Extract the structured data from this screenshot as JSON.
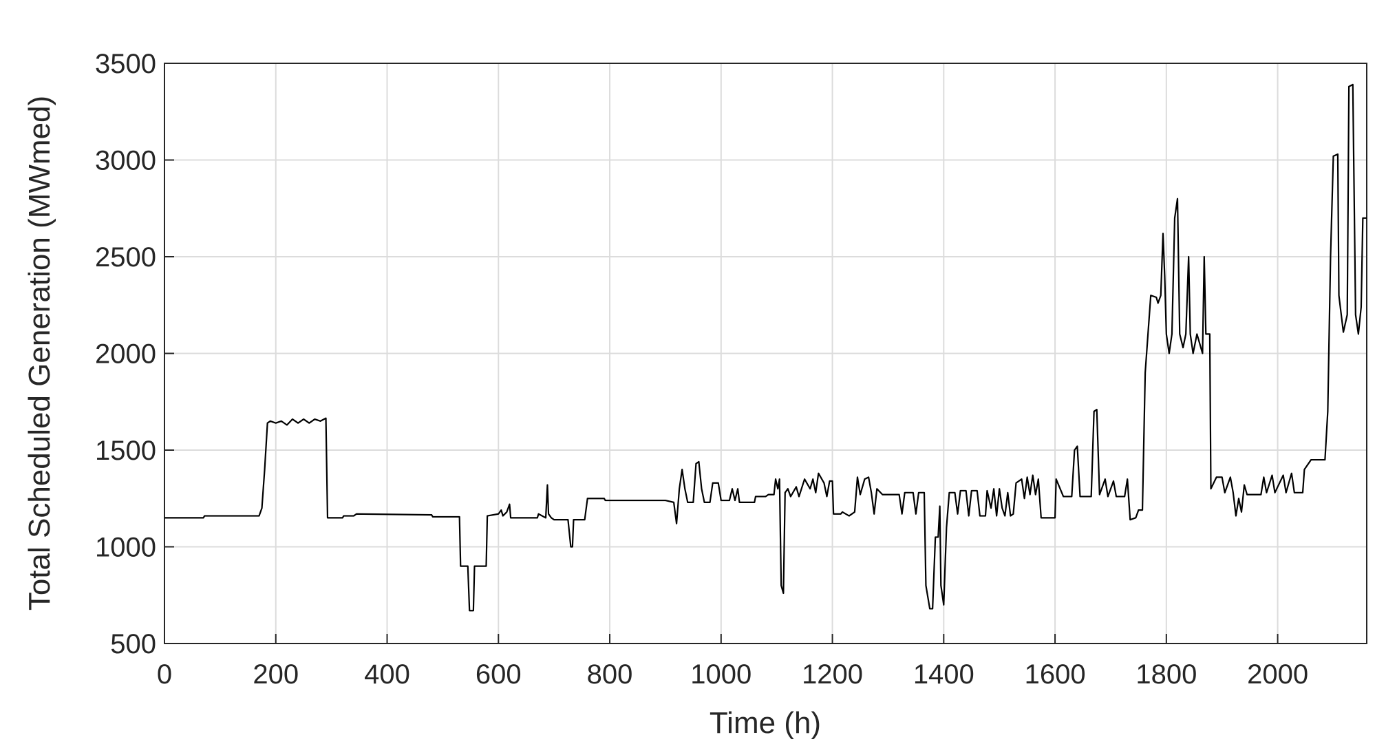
{
  "chart_data": {
    "type": "line",
    "xlabel": "Time (h)",
    "ylabel": "Total Scheduled Generation (MWmed)",
    "color": "#000000",
    "grid": true,
    "xlim": [
      0,
      2160
    ],
    "ylim": [
      500,
      3500
    ],
    "xticks": [
      0,
      200,
      400,
      600,
      800,
      1000,
      1200,
      1400,
      1600,
      1800,
      2000
    ],
    "yticks": [
      500,
      1000,
      1500,
      2000,
      2500,
      3000,
      3500
    ],
    "x": [
      0,
      70,
      72,
      170,
      175,
      180,
      185,
      190,
      200,
      210,
      220,
      230,
      240,
      250,
      260,
      270,
      280,
      290,
      293,
      320,
      322,
      340,
      345,
      480,
      482,
      530,
      532,
      545,
      548,
      555,
      557,
      578,
      580,
      600,
      605,
      608,
      615,
      620,
      622,
      670,
      672,
      685,
      688,
      690,
      695,
      700,
      725,
      730,
      733,
      735,
      755,
      760,
      790,
      792,
      900,
      915,
      920,
      925,
      930,
      935,
      940,
      950,
      955,
      960,
      965,
      970,
      980,
      985,
      995,
      1000,
      1015,
      1020,
      1025,
      1030,
      1033,
      1060,
      1062,
      1080,
      1085,
      1095,
      1098,
      1102,
      1105,
      1108,
      1112,
      1115,
      1120,
      1125,
      1135,
      1140,
      1150,
      1160,
      1165,
      1170,
      1175,
      1185,
      1190,
      1195,
      1200,
      1202,
      1215,
      1218,
      1230,
      1240,
      1245,
      1250,
      1258,
      1265,
      1270,
      1275,
      1280,
      1290,
      1320,
      1325,
      1330,
      1345,
      1350,
      1355,
      1365,
      1368,
      1375,
      1380,
      1385,
      1390,
      1393,
      1395,
      1400,
      1405,
      1410,
      1420,
      1425,
      1430,
      1440,
      1445,
      1450,
      1460,
      1465,
      1475,
      1478,
      1485,
      1490,
      1495,
      1500,
      1505,
      1510,
      1515,
      1520,
      1525,
      1530,
      1540,
      1545,
      1550,
      1555,
      1560,
      1565,
      1570,
      1575,
      1600,
      1602,
      1615,
      1630,
      1635,
      1640,
      1645,
      1665,
      1670,
      1675,
      1680,
      1690,
      1695,
      1705,
      1710,
      1725,
      1730,
      1735,
      1745,
      1750,
      1757,
      1762,
      1767,
      1772,
      1782,
      1785,
      1790,
      1794,
      1797,
      1800,
      1805,
      1810,
      1815,
      1820,
      1824,
      1830,
      1835,
      1840,
      1843,
      1848,
      1855,
      1865,
      1868,
      1871,
      1878,
      1880,
      1890,
      1900,
      1905,
      1915,
      1920,
      1925,
      1930,
      1935,
      1940,
      1945,
      1970,
      1975,
      1980,
      1990,
      1995,
      2010,
      2015,
      2025,
      2030,
      2045,
      2048,
      2060,
      2085,
      2090,
      2095,
      2100,
      2108,
      2110,
      2118,
      2125,
      2128,
      2135,
      2140,
      2145,
      2150,
      2153,
      2160
    ],
    "values": [
      1150,
      1150,
      1160,
      1160,
      1200,
      1400,
      1640,
      1650,
      1640,
      1650,
      1630,
      1660,
      1640,
      1660,
      1640,
      1660,
      1650,
      1665,
      1150,
      1150,
      1160,
      1160,
      1170,
      1165,
      1155,
      1155,
      900,
      900,
      670,
      670,
      900,
      900,
      1160,
      1170,
      1190,
      1160,
      1180,
      1220,
      1150,
      1150,
      1170,
      1150,
      1320,
      1170,
      1150,
      1140,
      1140,
      1000,
      1000,
      1140,
      1140,
      1250,
      1250,
      1240,
      1240,
      1230,
      1120,
      1300,
      1400,
      1300,
      1230,
      1230,
      1430,
      1440,
      1300,
      1230,
      1230,
      1330,
      1330,
      1240,
      1240,
      1300,
      1240,
      1300,
      1230,
      1230,
      1260,
      1260,
      1270,
      1270,
      1350,
      1300,
      1350,
      800,
      760,
      1280,
      1300,
      1260,
      1310,
      1260,
      1350,
      1300,
      1350,
      1280,
      1380,
      1330,
      1260,
      1340,
      1340,
      1170,
      1170,
      1180,
      1160,
      1180,
      1360,
      1270,
      1350,
      1360,
      1280,
      1170,
      1300,
      1270,
      1270,
      1170,
      1280,
      1280,
      1170,
      1280,
      1280,
      800,
      680,
      680,
      1050,
      1050,
      1210,
      800,
      700,
      1100,
      1280,
      1280,
      1170,
      1290,
      1290,
      1160,
      1290,
      1290,
      1160,
      1160,
      1290,
      1200,
      1300,
      1160,
      1300,
      1200,
      1160,
      1280,
      1160,
      1170,
      1330,
      1350,
      1250,
      1360,
      1270,
      1370,
      1270,
      1350,
      1150,
      1150,
      1350,
      1260,
      1260,
      1500,
      1520,
      1260,
      1260,
      1700,
      1710,
      1270,
      1350,
      1260,
      1340,
      1260,
      1260,
      1350,
      1140,
      1150,
      1190,
      1190,
      1900,
      2100,
      2300,
      2290,
      2260,
      2300,
      2620,
      2400,
      2100,
      2000,
      2100,
      2700,
      2800,
      2100,
      2030,
      2100,
      2500,
      2100,
      2000,
      2100,
      2000,
      2500,
      2100,
      2100,
      1300,
      1360,
      1360,
      1280,
      1360,
      1280,
      1160,
      1250,
      1180,
      1320,
      1270,
      1270,
      1360,
      1280,
      1370,
      1280,
      1370,
      1280,
      1380,
      1280,
      1280,
      1400,
      1450,
      1450,
      1700,
      2500,
      3020,
      3030,
      2300,
      2110,
      2200,
      3380,
      3390,
      2200,
      2100,
      2240,
      2700,
      2700
    ]
  }
}
